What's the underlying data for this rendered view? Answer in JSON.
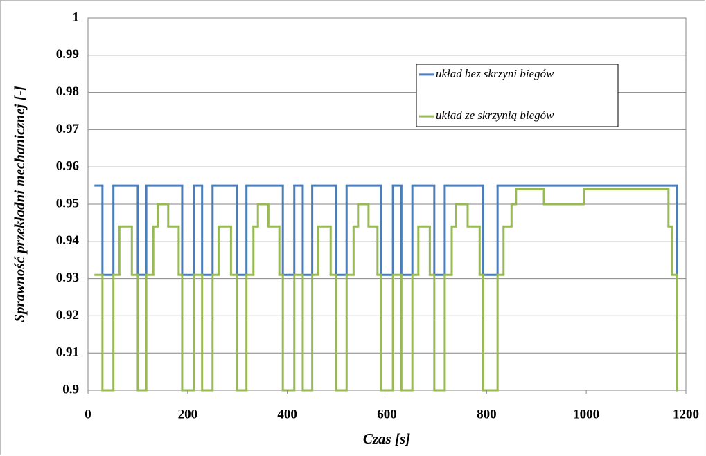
{
  "chart_data": {
    "type": "step",
    "xlabel": "Czas [s]",
    "ylabel": "Sprawność przekładni mechanicznej [-]",
    "xlim": [
      0,
      1200
    ],
    "xticks": [
      0,
      200,
      400,
      600,
      800,
      1000,
      1200
    ],
    "ylim": [
      0.9,
      1
    ],
    "yticks": [
      0.9,
      0.91,
      0.92,
      0.93,
      0.94,
      0.95,
      0.96,
      0.97,
      0.98,
      0.99,
      1
    ],
    "grid": true,
    "legend": "upper right",
    "series": [
      {
        "name": "układ bez skrzyni biegów",
        "color": "#4a7ebb",
        "x": [
          15,
          29,
          51,
          100,
          117,
          189,
          213,
          229,
          250,
          299,
          318,
          391,
          414,
          431,
          450,
          498,
          519,
          588,
          612,
          629,
          651,
          695,
          716,
          793,
          822,
          1182
        ],
        "values": [
          0.955,
          0.931,
          0.955,
          0.931,
          0.955,
          0.931,
          0.955,
          0.931,
          0.955,
          0.931,
          0.955,
          0.931,
          0.955,
          0.931,
          0.955,
          0.931,
          0.955,
          0.931,
          0.955,
          0.931,
          0.955,
          0.931,
          0.955,
          0.931,
          0.955,
          0.931
        ]
      },
      {
        "name": "układ ze skrzynią biegów",
        "color": "#98b954",
        "x": [
          15,
          29,
          51,
          63,
          88,
          100,
          117,
          131,
          140,
          161,
          182,
          189,
          213,
          229,
          250,
          262,
          287,
          299,
          318,
          332,
          341,
          362,
          384,
          391,
          414,
          431,
          450,
          462,
          487,
          498,
          519,
          533,
          542,
          563,
          581,
          588,
          612,
          629,
          651,
          663,
          686,
          695,
          716,
          730,
          739,
          762,
          786,
          793,
          822,
          834,
          850,
          859,
          915,
          995,
          1165,
          1172,
          1182
        ],
        "values": [
          0.931,
          0.9,
          0.931,
          0.944,
          0.931,
          0.9,
          0.931,
          0.944,
          0.95,
          0.944,
          0.931,
          0.9,
          0.931,
          0.9,
          0.931,
          0.944,
          0.931,
          0.9,
          0.931,
          0.944,
          0.95,
          0.944,
          0.931,
          0.9,
          0.931,
          0.9,
          0.931,
          0.944,
          0.931,
          0.9,
          0.931,
          0.944,
          0.95,
          0.944,
          0.931,
          0.9,
          0.931,
          0.9,
          0.931,
          0.944,
          0.931,
          0.9,
          0.931,
          0.944,
          0.95,
          0.944,
          0.931,
          0.9,
          0.931,
          0.944,
          0.95,
          0.954,
          0.95,
          0.954,
          0.944,
          0.931,
          0.9
        ]
      }
    ]
  }
}
